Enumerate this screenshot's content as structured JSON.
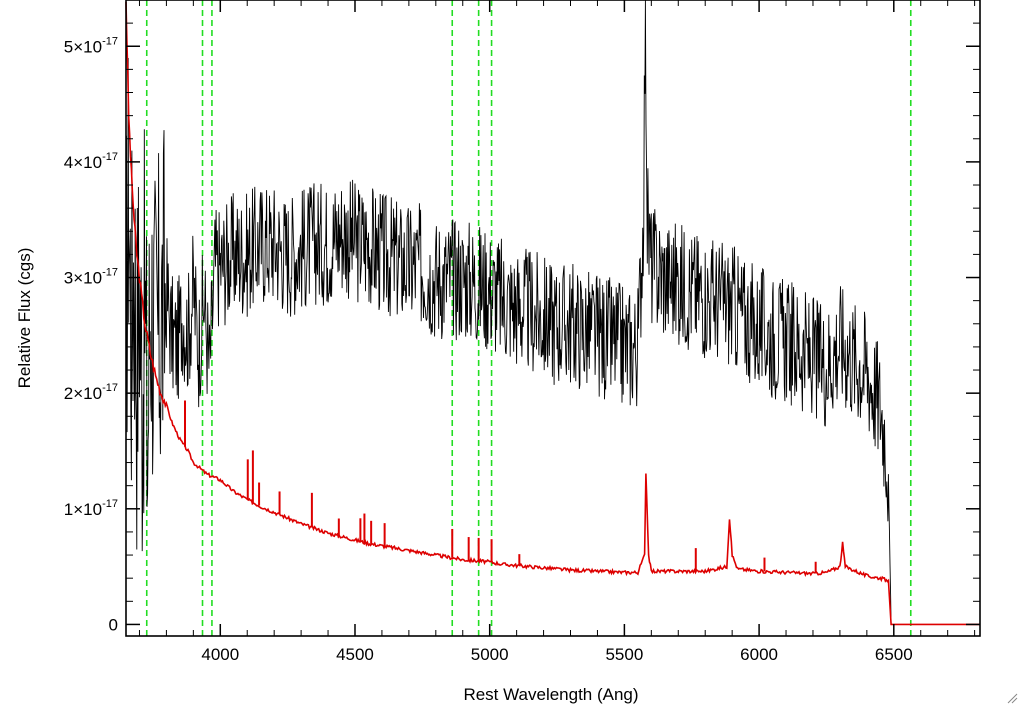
{
  "chart_data": {
    "type": "line",
    "xlabel": "Rest Wavelength (Ang)",
    "ylabel": "Relative Flux (cgs)",
    "xlim": [
      3650,
      6820
    ],
    "ylim": [
      -1e-18,
      5.4e-17
    ],
    "x_ticks": [
      {
        "value": 4000,
        "label": "4000"
      },
      {
        "value": 4500,
        "label": "4500"
      },
      {
        "value": 5000,
        "label": "5000"
      },
      {
        "value": 5500,
        "label": "5500"
      },
      {
        "value": 6000,
        "label": "6000"
      },
      {
        "value": 6500,
        "label": "6500"
      }
    ],
    "y_ticks": [
      {
        "value": 0,
        "mant": "0",
        "exp": ""
      },
      {
        "value": 1e-17,
        "mant": "1×10",
        "exp": "-17"
      },
      {
        "value": 2e-17,
        "mant": "2×10",
        "exp": "-17"
      },
      {
        "value": 3e-17,
        "mant": "3×10",
        "exp": "-17"
      },
      {
        "value": 4e-17,
        "mant": "4×10",
        "exp": "-17"
      },
      {
        "value": 5e-17,
        "mant": "5×10",
        "exp": "-17"
      }
    ],
    "grid": false,
    "reference_lines": [
      3727,
      3934,
      3969,
      4861,
      4959,
      5007,
      6563
    ],
    "series": [
      {
        "color": "#000000",
        "x": [
          3650,
          3660,
          3670,
          3680,
          3690,
          3700,
          3710,
          3720,
          3730,
          3740,
          3760,
          3780,
          3800,
          3820,
          3840,
          3860,
          3880,
          3900,
          3920,
          3940,
          3960,
          3980,
          4000,
          4050,
          4100,
          4150,
          4200,
          4250,
          4300,
          4350,
          4400,
          4450,
          4500,
          4550,
          4600,
          4650,
          4700,
          4750,
          4800,
          4850,
          4900,
          4950,
          5000,
          5050,
          5100,
          5150,
          5200,
          5250,
          5300,
          5350,
          5400,
          5450,
          5500,
          5550,
          5570,
          5578,
          5585,
          5600,
          5650,
          5700,
          5750,
          5800,
          5850,
          5900,
          5950,
          6000,
          6050,
          6100,
          6150,
          6200,
          6250,
          6300,
          6350,
          6400,
          6450,
          6470,
          6480,
          6490,
          6820
        ],
        "y": [
          2.6e-17,
          3.8e-17,
          2.5e-17,
          3.3e-17,
          2.2e-17,
          3e-17,
          2e-17,
          2.8e-17,
          1.5e-17,
          2.9e-17,
          2.4e-17,
          2.6e-17,
          2.9e-17,
          2.5e-17,
          2.4e-17,
          2.7e-17,
          2.5e-17,
          2.9e-17,
          2.4e-17,
          2.8e-17,
          2.2e-17,
          3.1e-17,
          3.1e-17,
          3.2e-17,
          3.2e-17,
          3.3e-17,
          3.3e-17,
          3.2e-17,
          3.25e-17,
          3.3e-17,
          3.3e-17,
          3.4e-17,
          3.3e-17,
          3.3e-17,
          3.2e-17,
          3.15e-17,
          3.1e-17,
          3.1e-17,
          3e-17,
          3e-17,
          3e-17,
          2.95e-17,
          2.9e-17,
          2.8e-17,
          2.75e-17,
          2.7e-17,
          2.65e-17,
          2.6e-17,
          2.6e-17,
          2.55e-17,
          2.5e-17,
          2.45e-17,
          2.4e-17,
          2.4e-17,
          3.5e-17,
          5.4e-17,
          3.5e-17,
          3.1e-17,
          3e-17,
          2.95e-17,
          2.9e-17,
          2.85e-17,
          2.8e-17,
          2.75e-17,
          2.65e-17,
          2.55e-17,
          2.5e-17,
          2.45e-17,
          2.4e-17,
          2.3e-17,
          2.25e-17,
          2.45e-17,
          2.3e-17,
          2.2e-17,
          1.9e-17,
          1.6e-17,
          1.3e-17,
          0,
          0
        ]
      },
      {
        "color": "#dd0000",
        "x": [
          3650,
          3660,
          3670,
          3680,
          3690,
          3700,
          3720,
          3740,
          3760,
          3780,
          3800,
          3820,
          3850,
          3880,
          3900,
          3950,
          4000,
          4050,
          4100,
          4150,
          4200,
          4250,
          4300,
          4350,
          4400,
          4450,
          4500,
          4550,
          4600,
          4650,
          4700,
          4750,
          4800,
          4850,
          4900,
          4950,
          5000,
          5050,
          5100,
          5200,
          5300,
          5400,
          5500,
          5550,
          5575,
          5580,
          5590,
          5600,
          5700,
          5800,
          5880,
          5890,
          5900,
          5920,
          6000,
          6100,
          6200,
          6250,
          6300,
          6310,
          6320,
          6400,
          6450,
          6480,
          6490,
          6820
        ],
        "y": [
          5.4e-17,
          4.4e-17,
          3.9e-17,
          3.5e-17,
          3.2e-17,
          3e-17,
          2.6e-17,
          2.35e-17,
          2.15e-17,
          2e-17,
          1.9e-17,
          1.75e-17,
          1.6e-17,
          1.5e-17,
          1.4e-17,
          1.3e-17,
          1.25e-17,
          1.15e-17,
          1.08e-17,
          1.02e-17,
          9.7e-18,
          9.2e-18,
          8.7e-18,
          8.3e-18,
          7.9e-18,
          7.6e-18,
          7.3e-18,
          7e-18,
          6.8e-18,
          6.6e-18,
          6.4e-18,
          6.2e-18,
          6e-18,
          5.8e-18,
          5.6e-18,
          5.5e-18,
          5.4e-18,
          5.2e-18,
          5.1e-18,
          4.9e-18,
          4.7e-18,
          4.6e-18,
          4.5e-18,
          4.5e-18,
          6e-18,
          1.32e-17,
          6e-18,
          4.6e-18,
          4.6e-18,
          4.6e-18,
          5e-18,
          9.2e-18,
          6e-18,
          4.8e-18,
          4.6e-18,
          4.5e-18,
          4.4e-18,
          4.5e-18,
          5e-18,
          7e-18,
          5e-18,
          4.2e-18,
          4e-18,
          3.8e-18,
          0,
          0
        ]
      }
    ],
    "emission_spikes": [
      {
        "x": 3869,
        "height": 4e-18
      },
      {
        "x": 4102,
        "height": 3.5e-18
      },
      {
        "x": 4121,
        "height": 4.5e-18
      },
      {
        "x": 4144,
        "height": 2e-18
      },
      {
        "x": 4220,
        "height": 2e-18
      },
      {
        "x": 4340,
        "height": 3e-18
      },
      {
        "x": 4440,
        "height": 1.5e-18
      },
      {
        "x": 4520,
        "height": 2e-18
      },
      {
        "x": 4535,
        "height": 2.5e-18
      },
      {
        "x": 4560,
        "height": 2e-18
      },
      {
        "x": 4610,
        "height": 2e-18
      },
      {
        "x": 4861,
        "height": 2.5e-18
      },
      {
        "x": 4922,
        "height": 2e-18
      },
      {
        "x": 4959,
        "height": 2e-18
      },
      {
        "x": 5007,
        "height": 2e-18
      },
      {
        "x": 5110,
        "height": 1e-18
      },
      {
        "x": 5765,
        "height": 2e-18
      },
      {
        "x": 6020,
        "height": 1.2e-18
      },
      {
        "x": 6210,
        "height": 1e-18
      }
    ]
  }
}
